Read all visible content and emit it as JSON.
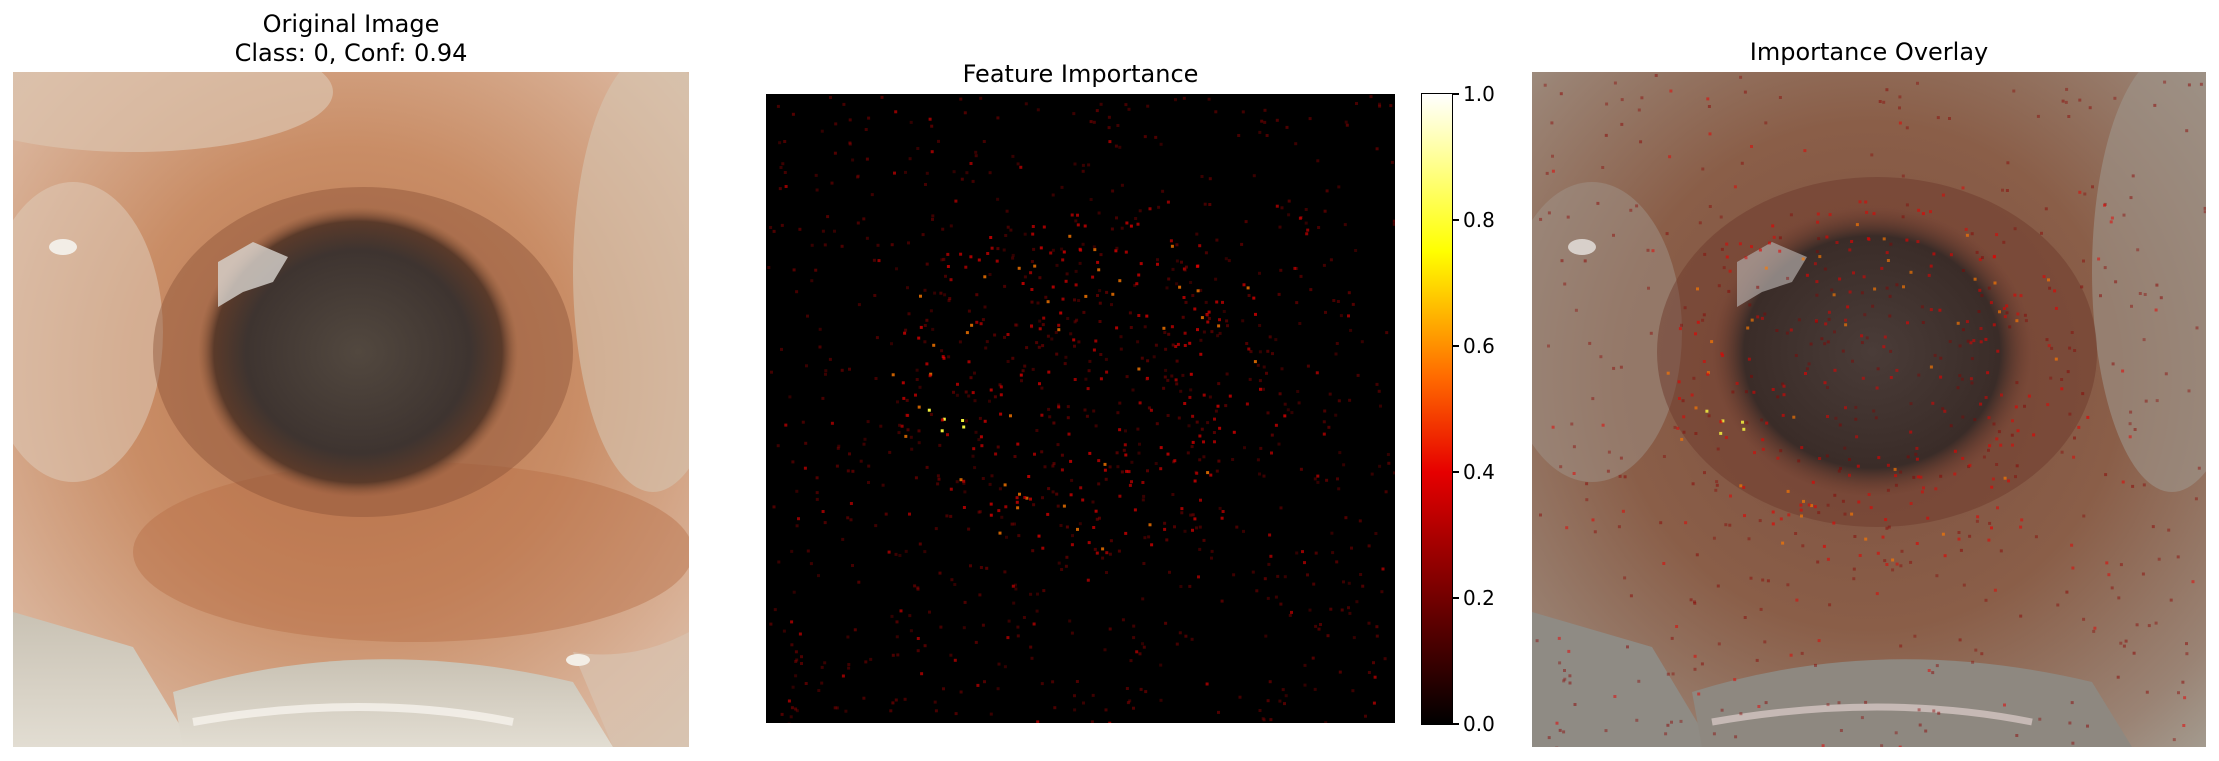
{
  "figure": {
    "panels": [
      {
        "title_line1": "Original Image",
        "title_line2": "Class: 0, Conf: 0.94"
      },
      {
        "title": "Feature Importance"
      },
      {
        "title": "Importance Overlay"
      }
    ]
  },
  "chart_data": [
    {
      "type": "image",
      "title": "Original Image\nClass: 0, Conf: 0.94",
      "predicted_class": 0,
      "confidence": 0.94,
      "axes": "off"
    },
    {
      "type": "heatmap",
      "title": "Feature Importance",
      "colormap": "hot",
      "value_range": [
        0.0,
        1.0
      ],
      "colorbar": {
        "ticks": [
          0.0,
          0.2,
          0.4,
          0.6,
          0.8,
          1.0
        ],
        "tick_labels": [
          "0.0",
          "0.2",
          "0.4",
          "0.6",
          "0.8",
          "1.0"
        ],
        "placement": "right"
      },
      "axes": "off"
    },
    {
      "type": "image",
      "title": "Importance Overlay",
      "colormap": "hot",
      "axes": "off"
    }
  ],
  "colors": {
    "tissue_light": "#d8b49a",
    "tissue_mid": "#c88a62",
    "lesion_dark": "#4a403a",
    "heat_dark": "#000000",
    "heat_red": "#e60000",
    "heat_yellow": "#ffff00",
    "heat_white": "#ffffff"
  }
}
